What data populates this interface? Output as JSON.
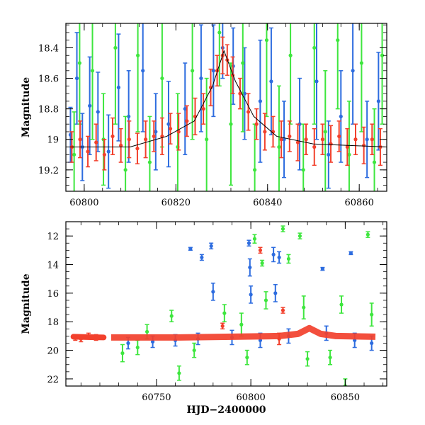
{
  "chart_data": [
    {
      "type": "scatter",
      "ylabel": "Magnitude",
      "xlabel": "",
      "xlim": [
        60796,
        60866
      ],
      "ylim": [
        19.34,
        18.24
      ],
      "y_inverted": true,
      "xticks": [
        60800,
        60820,
        60840,
        60860
      ],
      "yticks": [
        18.4,
        18.6,
        18.8,
        19.0,
        19.2
      ],
      "xtick_labels": [
        "60800",
        "60820",
        "60840",
        "60860"
      ],
      "ytick_labels": [
        "18.4",
        "18.6",
        "18.8",
        "19",
        "19.2"
      ],
      "series": [
        {
          "color": "#2d6cdf",
          "points": [
            {
              "x": 60797.0,
              "y": 18.97,
              "err": 0.18
            },
            {
              "x": 60798.4,
              "y": 18.6,
              "err": 0.3
            },
            {
              "x": 60799.6,
              "y": 19.05,
              "err": 0.22
            },
            {
              "x": 60801.2,
              "y": 18.78,
              "err": 0.32
            },
            {
              "x": 60803.0,
              "y": 18.82,
              "err": 0.26
            },
            {
              "x": 60805.3,
              "y": 19.08,
              "err": 0.24
            },
            {
              "x": 60807.5,
              "y": 18.66,
              "err": 0.35
            },
            {
              "x": 60809.7,
              "y": 18.85,
              "err": 0.3
            },
            {
              "x": 60812.8,
              "y": 18.55,
              "err": 0.4
            },
            {
              "x": 60815.6,
              "y": 18.95,
              "err": 0.25
            },
            {
              "x": 60818.4,
              "y": 18.9,
              "err": 0.28
            },
            {
              "x": 60822.0,
              "y": 18.8,
              "err": 0.3
            },
            {
              "x": 60825.5,
              "y": 18.6,
              "err": 0.35
            },
            {
              "x": 60828.2,
              "y": 18.55,
              "err": 0.3
            },
            {
              "x": 60830.2,
              "y": 18.4,
              "err": 0.2
            },
            {
              "x": 60832.5,
              "y": 18.52,
              "err": 0.25
            },
            {
              "x": 60835.0,
              "y": 18.7,
              "err": 0.3
            },
            {
              "x": 60838.4,
              "y": 18.75,
              "err": 0.4
            },
            {
              "x": 60840.8,
              "y": 18.62,
              "err": 0.35
            },
            {
              "x": 60843.6,
              "y": 19.0,
              "err": 0.25
            },
            {
              "x": 60847.0,
              "y": 18.9,
              "err": 0.3
            },
            {
              "x": 60850.7,
              "y": 18.62,
              "err": 0.38
            },
            {
              "x": 60853.3,
              "y": 19.1,
              "err": 0.22
            },
            {
              "x": 60856.0,
              "y": 18.85,
              "err": 0.3
            },
            {
              "x": 60858.6,
              "y": 18.55,
              "err": 0.35
            },
            {
              "x": 60861.7,
              "y": 19.0,
              "err": 0.25
            },
            {
              "x": 60864.2,
              "y": 18.75,
              "err": 0.32
            }
          ]
        },
        {
          "color": "#3ee63e",
          "points": [
            {
              "x": 60797.8,
              "y": 19.1,
              "err": 0.28
            },
            {
              "x": 60799.0,
              "y": 18.5,
              "err": 0.4
            },
            {
              "x": 60801.8,
              "y": 18.55,
              "err": 0.45
            },
            {
              "x": 60804.2,
              "y": 19.0,
              "err": 0.3
            },
            {
              "x": 60806.8,
              "y": 18.4,
              "err": 0.5
            },
            {
              "x": 60809.0,
              "y": 19.2,
              "err": 0.35
            },
            {
              "x": 60811.7,
              "y": 18.45,
              "err": 0.5
            },
            {
              "x": 60814.3,
              "y": 19.15,
              "err": 0.3
            },
            {
              "x": 60817.0,
              "y": 18.6,
              "err": 0.45
            },
            {
              "x": 60820.4,
              "y": 19.05,
              "err": 0.35
            },
            {
              "x": 60823.6,
              "y": 18.55,
              "err": 0.45
            },
            {
              "x": 60826.7,
              "y": 19.0,
              "err": 0.4
            },
            {
              "x": 60829.5,
              "y": 18.3,
              "err": 0.35
            },
            {
              "x": 60832.0,
              "y": 18.9,
              "err": 0.4
            },
            {
              "x": 60834.6,
              "y": 18.5,
              "err": 0.45
            },
            {
              "x": 60837.2,
              "y": 19.2,
              "err": 0.3
            },
            {
              "x": 60839.8,
              "y": 18.35,
              "err": 0.5
            },
            {
              "x": 60842.5,
              "y": 19.05,
              "err": 0.4
            },
            {
              "x": 60845.0,
              "y": 18.45,
              "err": 0.45
            },
            {
              "x": 60847.8,
              "y": 19.2,
              "err": 0.3
            },
            {
              "x": 60850.2,
              "y": 18.4,
              "err": 0.5
            },
            {
              "x": 60852.6,
              "y": 18.95,
              "err": 0.4
            },
            {
              "x": 60855.3,
              "y": 18.35,
              "err": 0.45
            },
            {
              "x": 60857.8,
              "y": 19.1,
              "err": 0.35
            },
            {
              "x": 60860.5,
              "y": 18.5,
              "err": 0.45
            },
            {
              "x": 60863.3,
              "y": 19.15,
              "err": 0.35
            },
            {
              "x": 60865.0,
              "y": 18.45,
              "err": 0.45
            }
          ]
        },
        {
          "color": "#f2402c",
          "points": [
            {
              "x": 60797.3,
              "y": 19.05,
              "err": 0.1
            },
            {
              "x": 60799.1,
              "y": 19.0,
              "err": 0.12
            },
            {
              "x": 60800.8,
              "y": 19.08,
              "err": 0.1
            },
            {
              "x": 60802.6,
              "y": 19.02,
              "err": 0.12
            },
            {
              "x": 60804.4,
              "y": 19.1,
              "err": 0.1
            },
            {
              "x": 60806.2,
              "y": 18.98,
              "err": 0.12
            },
            {
              "x": 60808.0,
              "y": 19.04,
              "err": 0.11
            },
            {
              "x": 60809.8,
              "y": 19.0,
              "err": 0.12
            },
            {
              "x": 60811.6,
              "y": 19.06,
              "err": 0.1
            },
            {
              "x": 60813.4,
              "y": 19.0,
              "err": 0.12
            },
            {
              "x": 60815.2,
              "y": 18.98,
              "err": 0.1
            },
            {
              "x": 60817.0,
              "y": 18.98,
              "err": 0.12
            },
            {
              "x": 60818.8,
              "y": 18.93,
              "err": 0.1
            },
            {
              "x": 60820.6,
              "y": 18.95,
              "err": 0.12
            },
            {
              "x": 60822.4,
              "y": 18.88,
              "err": 0.1
            },
            {
              "x": 60824.2,
              "y": 18.85,
              "err": 0.12
            },
            {
              "x": 60826.0,
              "y": 18.8,
              "err": 0.1
            },
            {
              "x": 60827.6,
              "y": 18.66,
              "err": 0.12
            },
            {
              "x": 60829.0,
              "y": 18.55,
              "err": 0.1
            },
            {
              "x": 60830.2,
              "y": 18.45,
              "err": 0.12
            },
            {
              "x": 60831.2,
              "y": 18.48,
              "err": 0.1
            },
            {
              "x": 60832.4,
              "y": 18.58,
              "err": 0.12
            },
            {
              "x": 60834.0,
              "y": 18.7,
              "err": 0.1
            },
            {
              "x": 60835.8,
              "y": 18.82,
              "err": 0.12
            },
            {
              "x": 60837.6,
              "y": 18.9,
              "err": 0.1
            },
            {
              "x": 60839.4,
              "y": 18.95,
              "err": 0.12
            },
            {
              "x": 60841.2,
              "y": 18.95,
              "err": 0.1
            },
            {
              "x": 60843.0,
              "y": 19.0,
              "err": 0.12
            },
            {
              "x": 60844.8,
              "y": 18.98,
              "err": 0.1
            },
            {
              "x": 60846.6,
              "y": 19.02,
              "err": 0.12
            },
            {
              "x": 60848.4,
              "y": 19.0,
              "err": 0.1
            },
            {
              "x": 60850.2,
              "y": 19.05,
              "err": 0.12
            },
            {
              "x": 60852.0,
              "y": 19.0,
              "err": 0.1
            },
            {
              "x": 60853.8,
              "y": 19.03,
              "err": 0.12
            },
            {
              "x": 60855.6,
              "y": 18.98,
              "err": 0.1
            },
            {
              "x": 60857.4,
              "y": 19.05,
              "err": 0.12
            },
            {
              "x": 60859.2,
              "y": 19.0,
              "err": 0.1
            },
            {
              "x": 60861.0,
              "y": 19.04,
              "err": 0.12
            },
            {
              "x": 60862.8,
              "y": 19.0,
              "err": 0.1
            },
            {
              "x": 60864.6,
              "y": 19.05,
              "err": 0.12
            }
          ]
        }
      ],
      "model_curve": {
        "color": "#000000",
        "points": [
          {
            "x": 60796,
            "y": 19.05
          },
          {
            "x": 60810,
            "y": 19.05
          },
          {
            "x": 60818,
            "y": 18.98
          },
          {
            "x": 60824,
            "y": 18.88
          },
          {
            "x": 60828,
            "y": 18.65
          },
          {
            "x": 60830.5,
            "y": 18.42
          },
          {
            "x": 60833,
            "y": 18.62
          },
          {
            "x": 60837,
            "y": 18.85
          },
          {
            "x": 60842,
            "y": 18.98
          },
          {
            "x": 60850,
            "y": 19.03
          },
          {
            "x": 60866,
            "y": 19.05
          }
        ]
      }
    },
    {
      "type": "scatter",
      "ylabel": "Magnitude",
      "xlabel": "HJD−2400000",
      "xlim": [
        60702,
        60872
      ],
      "ylim": [
        22.5,
        11.0
      ],
      "y_inverted": true,
      "xticks": [
        60750,
        60800,
        60850
      ],
      "yticks": [
        12,
        14,
        16,
        18,
        20,
        22
      ],
      "xtick_labels": [
        "60750",
        "60800",
        "60850"
      ],
      "ytick_labels": [
        "12",
        "14",
        "16",
        "18",
        "20",
        "22"
      ],
      "series": [
        {
          "color": "#2d6cdf",
          "points": [
            {
              "x": 60768,
              "y": 12.9,
              "err": 0.1
            },
            {
              "x": 60774,
              "y": 13.5,
              "err": 0.2
            },
            {
              "x": 60779,
              "y": 12.7,
              "err": 0.2
            },
            {
              "x": 60780,
              "y": 15.9,
              "err": 0.6
            },
            {
              "x": 60799,
              "y": 12.5,
              "err": 0.2
            },
            {
              "x": 60799.5,
              "y": 14.2,
              "err": 0.6
            },
            {
              "x": 60800,
              "y": 16.1,
              "err": 0.6
            },
            {
              "x": 60812,
              "y": 13.3,
              "err": 0.5
            },
            {
              "x": 60813,
              "y": 16.0,
              "err": 0.6
            },
            {
              "x": 60815,
              "y": 13.5,
              "err": 0.4
            },
            {
              "x": 60838,
              "y": 14.3,
              "err": 0.1
            },
            {
              "x": 60853,
              "y": 13.2,
              "err": 0.1
            },
            {
              "x": 60735,
              "y": 19.5,
              "err": 0.4
            },
            {
              "x": 60748,
              "y": 19.4,
              "err": 0.4
            },
            {
              "x": 60760,
              "y": 19.3,
              "err": 0.4
            },
            {
              "x": 60772,
              "y": 19.2,
              "err": 0.4
            },
            {
              "x": 60790,
              "y": 19.1,
              "err": 0.5
            },
            {
              "x": 60805,
              "y": 19.3,
              "err": 0.5
            },
            {
              "x": 60820,
              "y": 19.0,
              "err": 0.5
            },
            {
              "x": 60840,
              "y": 18.8,
              "err": 0.5
            },
            {
              "x": 60855,
              "y": 19.3,
              "err": 0.5
            },
            {
              "x": 60864,
              "y": 19.5,
              "err": 0.5
            }
          ]
        },
        {
          "color": "#3ee63e",
          "points": [
            {
              "x": 60732,
              "y": 20.2,
              "err": 0.6
            },
            {
              "x": 60745,
              "y": 18.7,
              "err": 0.5
            },
            {
              "x": 60758,
              "y": 17.6,
              "err": 0.4
            },
            {
              "x": 60762,
              "y": 21.6,
              "err": 0.5
            },
            {
              "x": 60786,
              "y": 17.4,
              "err": 0.6
            },
            {
              "x": 60795,
              "y": 18.2,
              "err": 0.8
            },
            {
              "x": 60802,
              "y": 12.2,
              "err": 0.3
            },
            {
              "x": 60806,
              "y": 13.9,
              "err": 0.2
            },
            {
              "x": 60808,
              "y": 16.5,
              "err": 0.6
            },
            {
              "x": 60817,
              "y": 11.5,
              "err": 0.2
            },
            {
              "x": 60820,
              "y": 13.6,
              "err": 0.3
            },
            {
              "x": 60826,
              "y": 12.0,
              "err": 0.2
            },
            {
              "x": 60828,
              "y": 17.0,
              "err": 0.8
            },
            {
              "x": 60848,
              "y": 16.8,
              "err": 0.6
            },
            {
              "x": 60850,
              "y": 22.5,
              "err": 0.5
            },
            {
              "x": 60862,
              "y": 11.9,
              "err": 0.2
            },
            {
              "x": 60864,
              "y": 17.5,
              "err": 0.8
            },
            {
              "x": 60740,
              "y": 19.8,
              "err": 0.5
            },
            {
              "x": 60770,
              "y": 20.0,
              "err": 0.5
            },
            {
              "x": 60798,
              "y": 20.5,
              "err": 0.5
            },
            {
              "x": 60830,
              "y": 20.6,
              "err": 0.5
            },
            {
              "x": 60842,
              "y": 20.5,
              "err": 0.5
            }
          ]
        },
        {
          "color": "#f2402c",
          "points": [
            {
              "x": 60707,
              "y": 19.1,
              "err": 0.2
            },
            {
              "x": 60710,
              "y": 19.2,
              "err": 0.2
            },
            {
              "x": 60714,
              "y": 19.0,
              "err": 0.2
            },
            {
              "x": 60718,
              "y": 19.1,
              "err": 0.2
            },
            {
              "x": 60805,
              "y": 13.0,
              "err": 0.2
            },
            {
              "x": 60817,
              "y": 17.2,
              "err": 0.2
            },
            {
              "x": 60815,
              "y": 19.2,
              "err": 0.4
            },
            {
              "x": 60785,
              "y": 18.3,
              "err": 0.2
            }
          ]
        }
      ],
      "band": {
        "color": "#f2402c",
        "x_start": 60726,
        "x_end": 60866,
        "points": [
          {
            "x": 60726,
            "y": 19.1
          },
          {
            "x": 60760,
            "y": 19.1
          },
          {
            "x": 60790,
            "y": 19.05
          },
          {
            "x": 60815,
            "y": 19.0
          },
          {
            "x": 60825,
            "y": 18.85
          },
          {
            "x": 60831,
            "y": 18.45
          },
          {
            "x": 60837,
            "y": 18.85
          },
          {
            "x": 60845,
            "y": 19.0
          },
          {
            "x": 60866,
            "y": 19.05
          }
        ]
      },
      "band_left": {
        "color": "#f2402c",
        "points": [
          {
            "x": 60706,
            "y": 19.05
          },
          {
            "x": 60722,
            "y": 19.1
          }
        ]
      }
    }
  ]
}
